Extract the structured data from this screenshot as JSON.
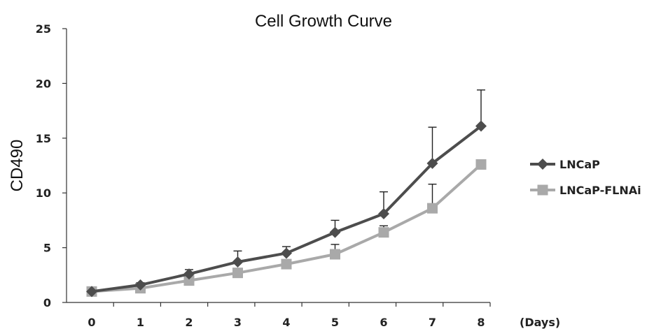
{
  "chart_data": {
    "type": "line",
    "title": "Cell Growth Curve",
    "xlabel": "(Days)",
    "ylabel": "CD490",
    "x": [
      0,
      1,
      2,
      3,
      4,
      5,
      6,
      7,
      8
    ],
    "xlim": [
      0,
      8
    ],
    "ylim": [
      0,
      25
    ],
    "yticks": [
      0,
      5,
      10,
      15,
      20,
      25
    ],
    "grid": false,
    "legend_position": "right",
    "series": [
      {
        "name": "LNCaP",
        "color": "#4d4d4d",
        "marker": "diamond",
        "values": [
          1.0,
          1.6,
          2.6,
          3.7,
          4.5,
          6.4,
          8.1,
          12.7,
          16.1
        ],
        "error_up": [
          0,
          0.2,
          0.4,
          1.0,
          0.6,
          1.1,
          2.0,
          3.3,
          3.3
        ]
      },
      {
        "name": "LNCaP-FLNAi",
        "color": "#a9a9a9",
        "marker": "square",
        "values": [
          1.0,
          1.3,
          2.0,
          2.7,
          3.5,
          4.4,
          6.4,
          8.6,
          12.6
        ],
        "error_up": [
          0,
          0.2,
          0.2,
          0.3,
          0.3,
          0.9,
          0.6,
          2.2,
          0.3
        ]
      }
    ]
  }
}
